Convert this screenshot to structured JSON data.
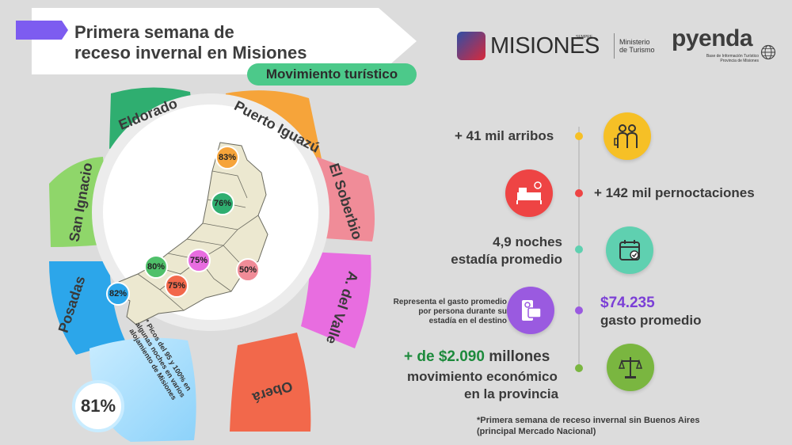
{
  "header": {
    "title_line1": "Primera semana de",
    "title_line2": "receso invernal en Misiones",
    "subtitle": "Movimiento turístico"
  },
  "logos": {
    "misiones_word": "MISIONES",
    "misiones_small": "SEMPRE",
    "ministerio_line1": "Ministerio",
    "ministerio_line2": "de Turismo",
    "pyenda_word": "pyenda",
    "pyenda_sub_line1": "Base de Información Turístico",
    "pyenda_sub_line2": "Provincia de Misiones"
  },
  "regions": [
    {
      "name": "Eldorado",
      "color": "#2fae70"
    },
    {
      "name": "Puerto Iguazú",
      "color": "#f6a43a"
    },
    {
      "name": "El Soberbio",
      "color": "#f08c98"
    },
    {
      "name": "A. del Valle",
      "color": "#e86de0"
    },
    {
      "name": "Oberá",
      "color": "#f2684b"
    },
    {
      "name": "Posadas",
      "color": "#2ca6ea"
    },
    {
      "name": "San Ignacio",
      "color": "#8fd66a"
    }
  ],
  "percentages": {
    "iguazu": "83%",
    "eldorado": "76%",
    "san_ignacio": "80%",
    "valle": "75%",
    "soberbio": "50%",
    "obera": "75%",
    "posadas": "82%"
  },
  "note": {
    "text": "* Picos del 95 y 100% en algunas noches en varios alojamiento de Misiones",
    "overall": "81%"
  },
  "stats": {
    "arribos": "+ 41 mil arribos",
    "pernoctaciones": "+ 142 mil pernoctaciones",
    "noches_line1": "4,9 noches",
    "noches_line2": "estadía promedio",
    "gasto_desc_line1": "Representa el gasto promedio",
    "gasto_desc_line2": "por persona durante su",
    "gasto_desc_line3": "estadía en el destino",
    "gasto_value": "$74.235",
    "gasto_label": "gasto promedio",
    "movimiento_value": "+ de $2.090",
    "movimiento_unit": "millones",
    "movimiento_line2": "movimiento económico",
    "movimiento_line3": "en la provincia"
  },
  "colors": {
    "yellow": "#f6c026",
    "red": "#ee4444",
    "teal": "#5fd0b0",
    "purple": "#9a5ae0",
    "green": "#7ab640",
    "money_purple": "#7b3fd6",
    "money_green": "#1d8a3c"
  },
  "footnote": {
    "line1": "*Primera semana de receso invernal sin Buenos Aires",
    "line2": "(principal Mercado Nacional)"
  }
}
